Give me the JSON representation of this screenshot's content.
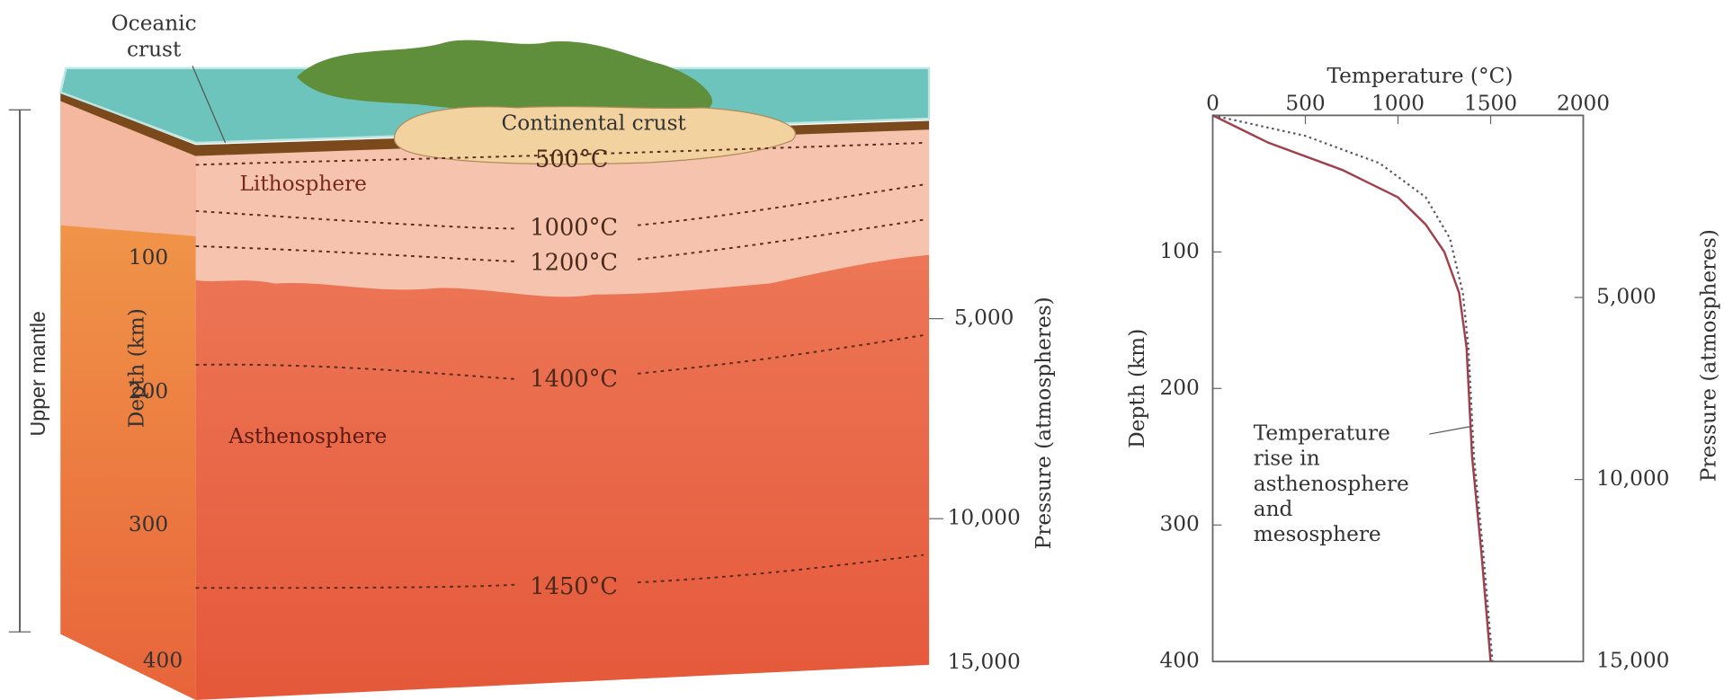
{
  "diagram": {
    "oceanic_crust": [
      "Oceanic",
      "crust"
    ],
    "continental_crust": "Continental crust",
    "lithosphere": "Lithosphere",
    "asthenosphere": "Asthenosphere",
    "isotherms": [
      "500°C",
      "1000°C",
      "1200°C",
      "1400°C",
      "1450°C"
    ],
    "upper_mantle": "Upper mantle",
    "depth_label": "Depth (km)",
    "depth_ticks": [
      "100",
      "200",
      "300",
      "400"
    ],
    "pressure_label": "Pressure (atmospheres)",
    "pressure_ticks": [
      "5,000",
      "10,000",
      "15,000"
    ]
  },
  "chart_data": {
    "type": "line",
    "title": "Temperature (°C)",
    "y_label": "Depth (km)",
    "y2_label": "Pressure (atmospheres)",
    "annotation": [
      "Temperature",
      "rise in",
      "asthenosphere",
      "and",
      "mesosphere"
    ],
    "xlim": [
      0,
      2000
    ],
    "xticks": [
      0,
      500,
      1000,
      1500,
      2000
    ],
    "ylim": [
      0,
      400
    ],
    "yticks": [
      100,
      200,
      300,
      400
    ],
    "y2lim": [
      0,
      15000
    ],
    "y2ticks": [
      {
        "value": 5000,
        "label": "5,000"
      },
      {
        "value": 10000,
        "label": "10,000"
      },
      {
        "value": 15000,
        "label": "15,000"
      }
    ],
    "series": [
      {
        "color": "#a0404a",
        "style": "solid",
        "x": [
          0,
          300,
          700,
          1000,
          1150,
          1250,
          1330,
          1370,
          1400,
          1450,
          1500
        ],
        "values": [
          0,
          20,
          40,
          60,
          80,
          100,
          130,
          170,
          250,
          320,
          400
        ]
      },
      {
        "color": "#555566",
        "style": "dotted",
        "x": [
          0,
          500,
          900,
          1150,
          1280,
          1350,
          1380,
          1410,
          1460,
          1510
        ],
        "values": [
          0,
          15,
          35,
          60,
          90,
          130,
          170,
          250,
          320,
          400
        ]
      }
    ]
  }
}
